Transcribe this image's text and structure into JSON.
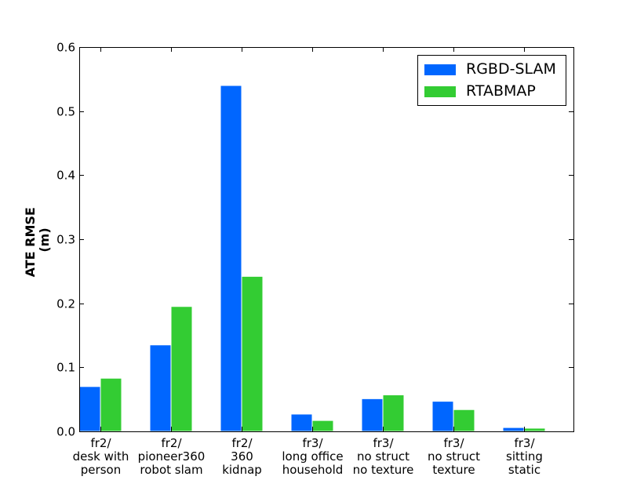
{
  "chart_data": {
    "type": "bar",
    "ylabel_lines": [
      "ATE RMSE",
      "(m)"
    ],
    "categories": [
      [
        "fr2/",
        "desk with",
        "person"
      ],
      [
        "fr2/",
        "pioneer360",
        "robot slam"
      ],
      [
        "fr2/",
        "360",
        "kidnap"
      ],
      [
        "fr3/",
        "long office",
        "household"
      ],
      [
        "fr3/",
        "no struct",
        "no texture"
      ],
      [
        "fr3/",
        "no struct",
        "texture"
      ],
      [
        "fr3/",
        "sitting",
        "static"
      ]
    ],
    "ylim": [
      0,
      0.6
    ],
    "yticks": [
      "0.0",
      "0.1",
      "0.2",
      "0.3",
      "0.4",
      "0.5",
      "0.6"
    ],
    "grid": false,
    "legend_position": "top-right",
    "series": [
      {
        "name": "RGBD-SLAM",
        "color": "#0066ff",
        "values": [
          0.07,
          0.135,
          0.54,
          0.027,
          0.051,
          0.047,
          0.006
        ]
      },
      {
        "name": "RTABMAP",
        "color": "#33cc33",
        "values": [
          0.083,
          0.195,
          0.242,
          0.017,
          0.057,
          0.034,
          0.005
        ]
      }
    ]
  }
}
